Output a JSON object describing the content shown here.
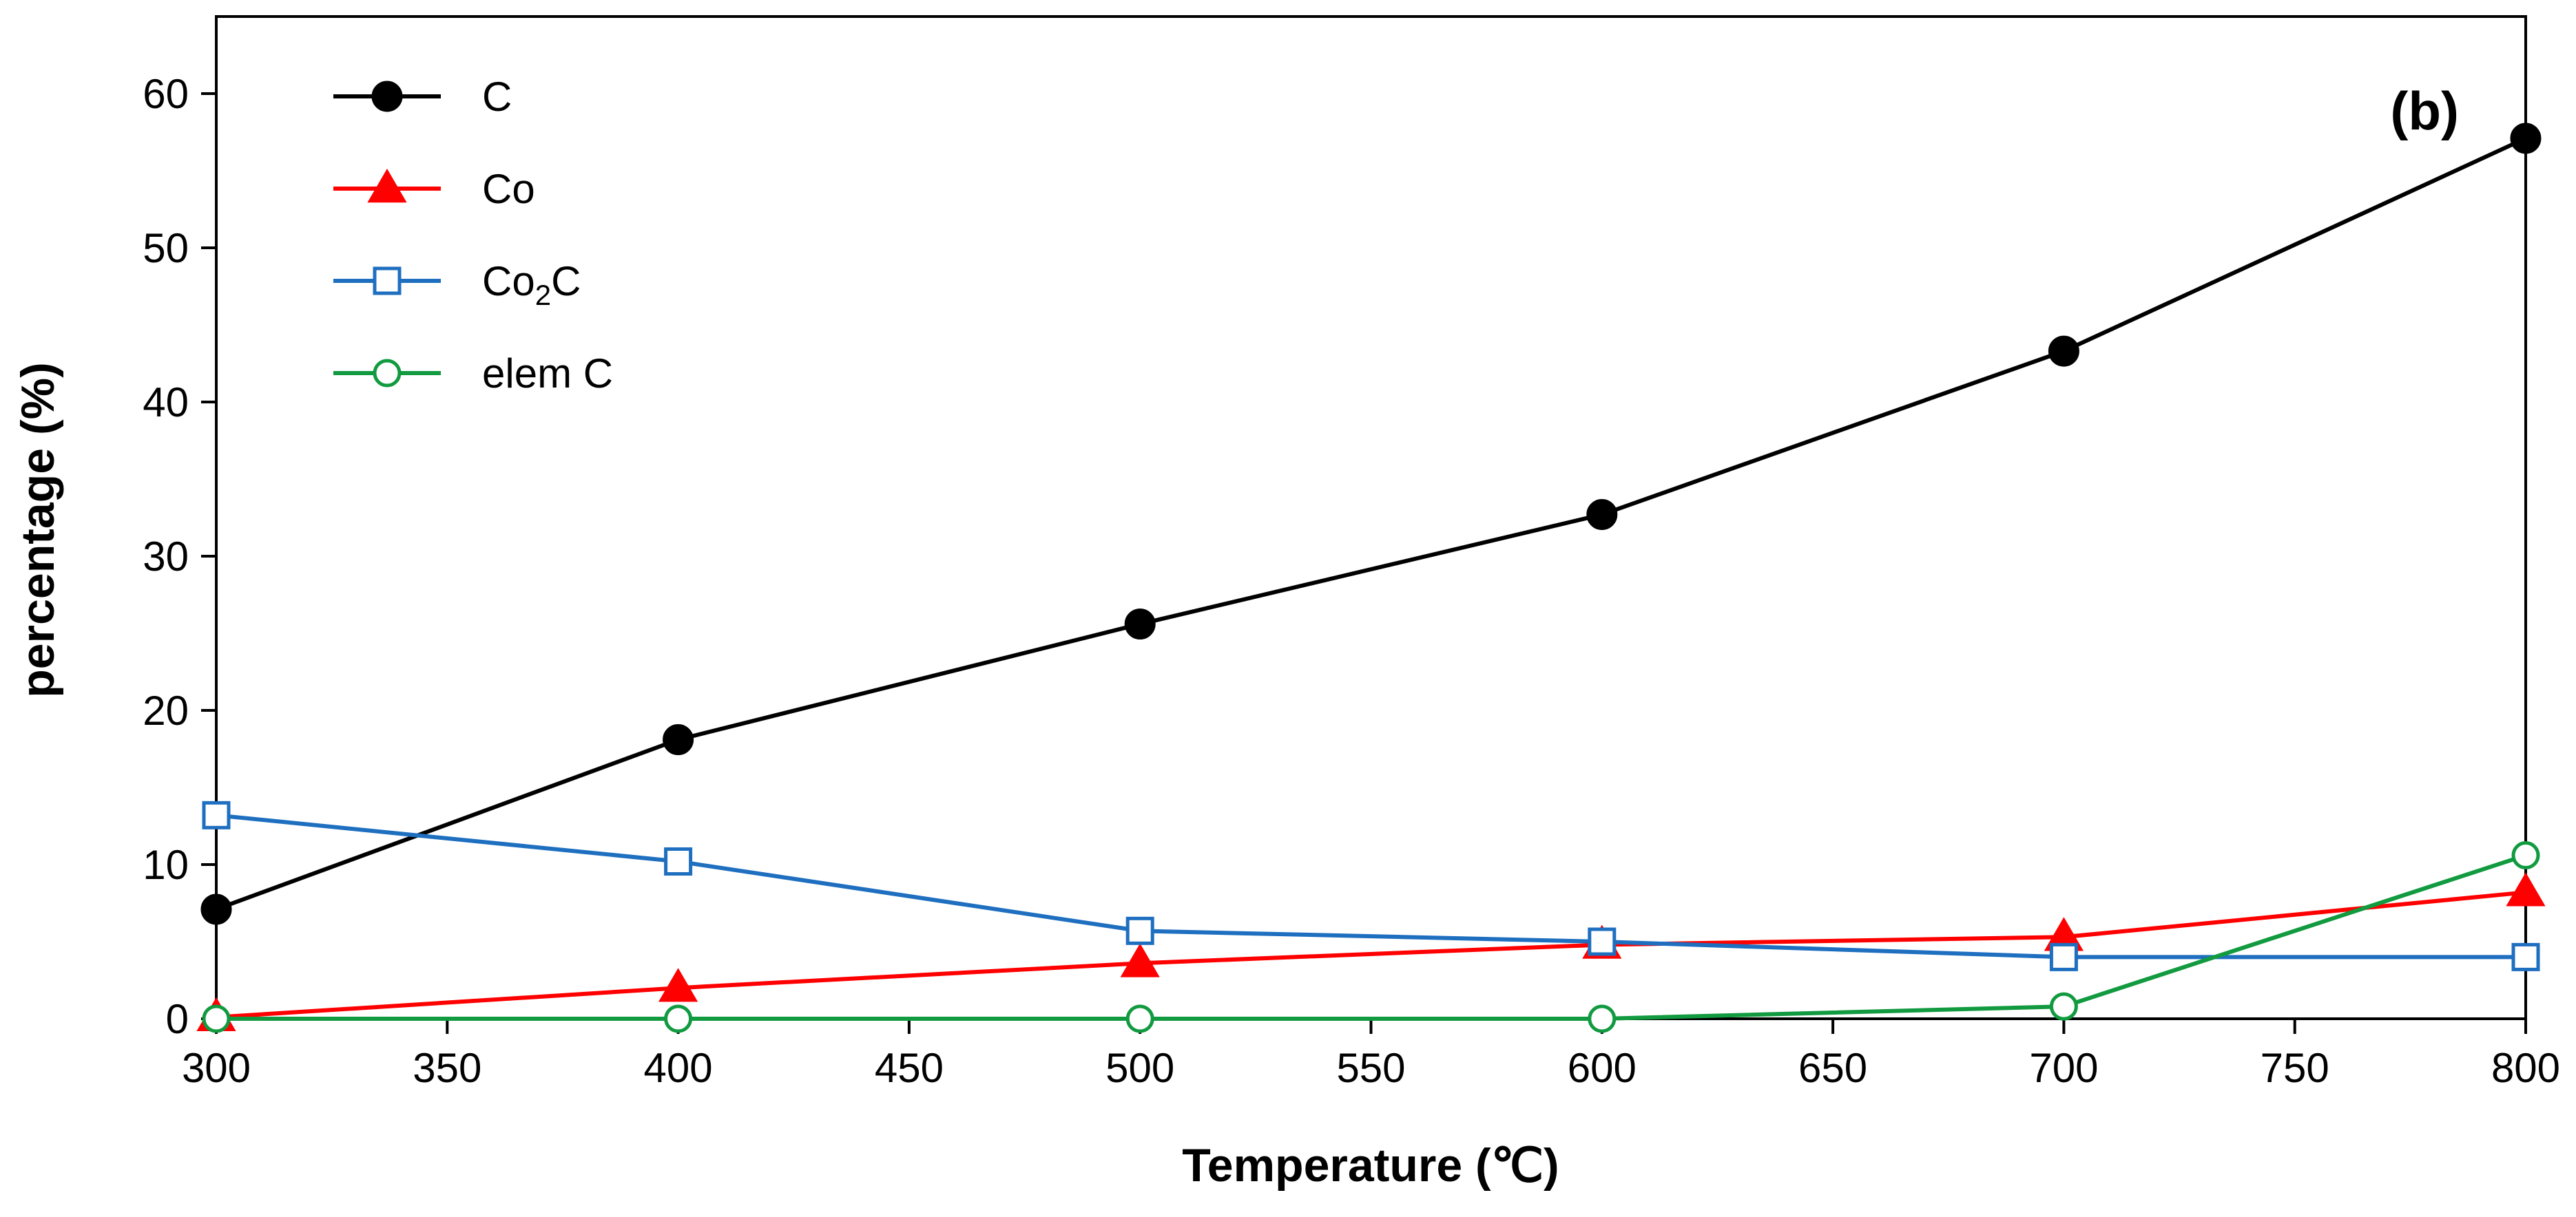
{
  "chart_data": {
    "type": "line",
    "panel_label": "(b)",
    "xlabel": "Temperature (℃)",
    "ylabel": "percentage (%)",
    "xlim": [
      300,
      800
    ],
    "ylim": [
      0,
      65
    ],
    "x_ticks": [
      300,
      350,
      400,
      450,
      500,
      550,
      600,
      650,
      700,
      750,
      800
    ],
    "y_ticks": [
      0,
      10,
      20,
      30,
      40,
      50,
      60
    ],
    "grid": false,
    "legend_position": "top-left",
    "x": [
      300,
      400,
      500,
      600,
      700,
      800
    ],
    "series": [
      {
        "name": "C",
        "legend_main": "C",
        "legend_sub": "",
        "legend_tail": "",
        "color": "#000000",
        "marker": "filled-circle",
        "values": [
          7.1,
          18.1,
          25.6,
          32.7,
          43.3,
          57.1
        ]
      },
      {
        "name": "Co",
        "legend_main": "Co",
        "legend_sub": "",
        "legend_tail": "",
        "color": "#ff0000",
        "marker": "filled-triangle",
        "values": [
          0.1,
          2.0,
          3.6,
          4.8,
          5.3,
          8.2
        ]
      },
      {
        "name": "Co2C",
        "legend_main": "Co",
        "legend_sub": "2",
        "legend_tail": "C",
        "color": "#1f6fc0",
        "marker": "open-square",
        "values": [
          13.2,
          10.2,
          5.7,
          5.0,
          4.0,
          4.0
        ]
      },
      {
        "name": "elem C",
        "legend_main": "elem C",
        "legend_sub": "",
        "legend_tail": "",
        "color": "#119a3f",
        "marker": "open-circle",
        "values": [
          0.0,
          0.0,
          0.0,
          0.0,
          0.8,
          10.6
        ]
      }
    ]
  }
}
